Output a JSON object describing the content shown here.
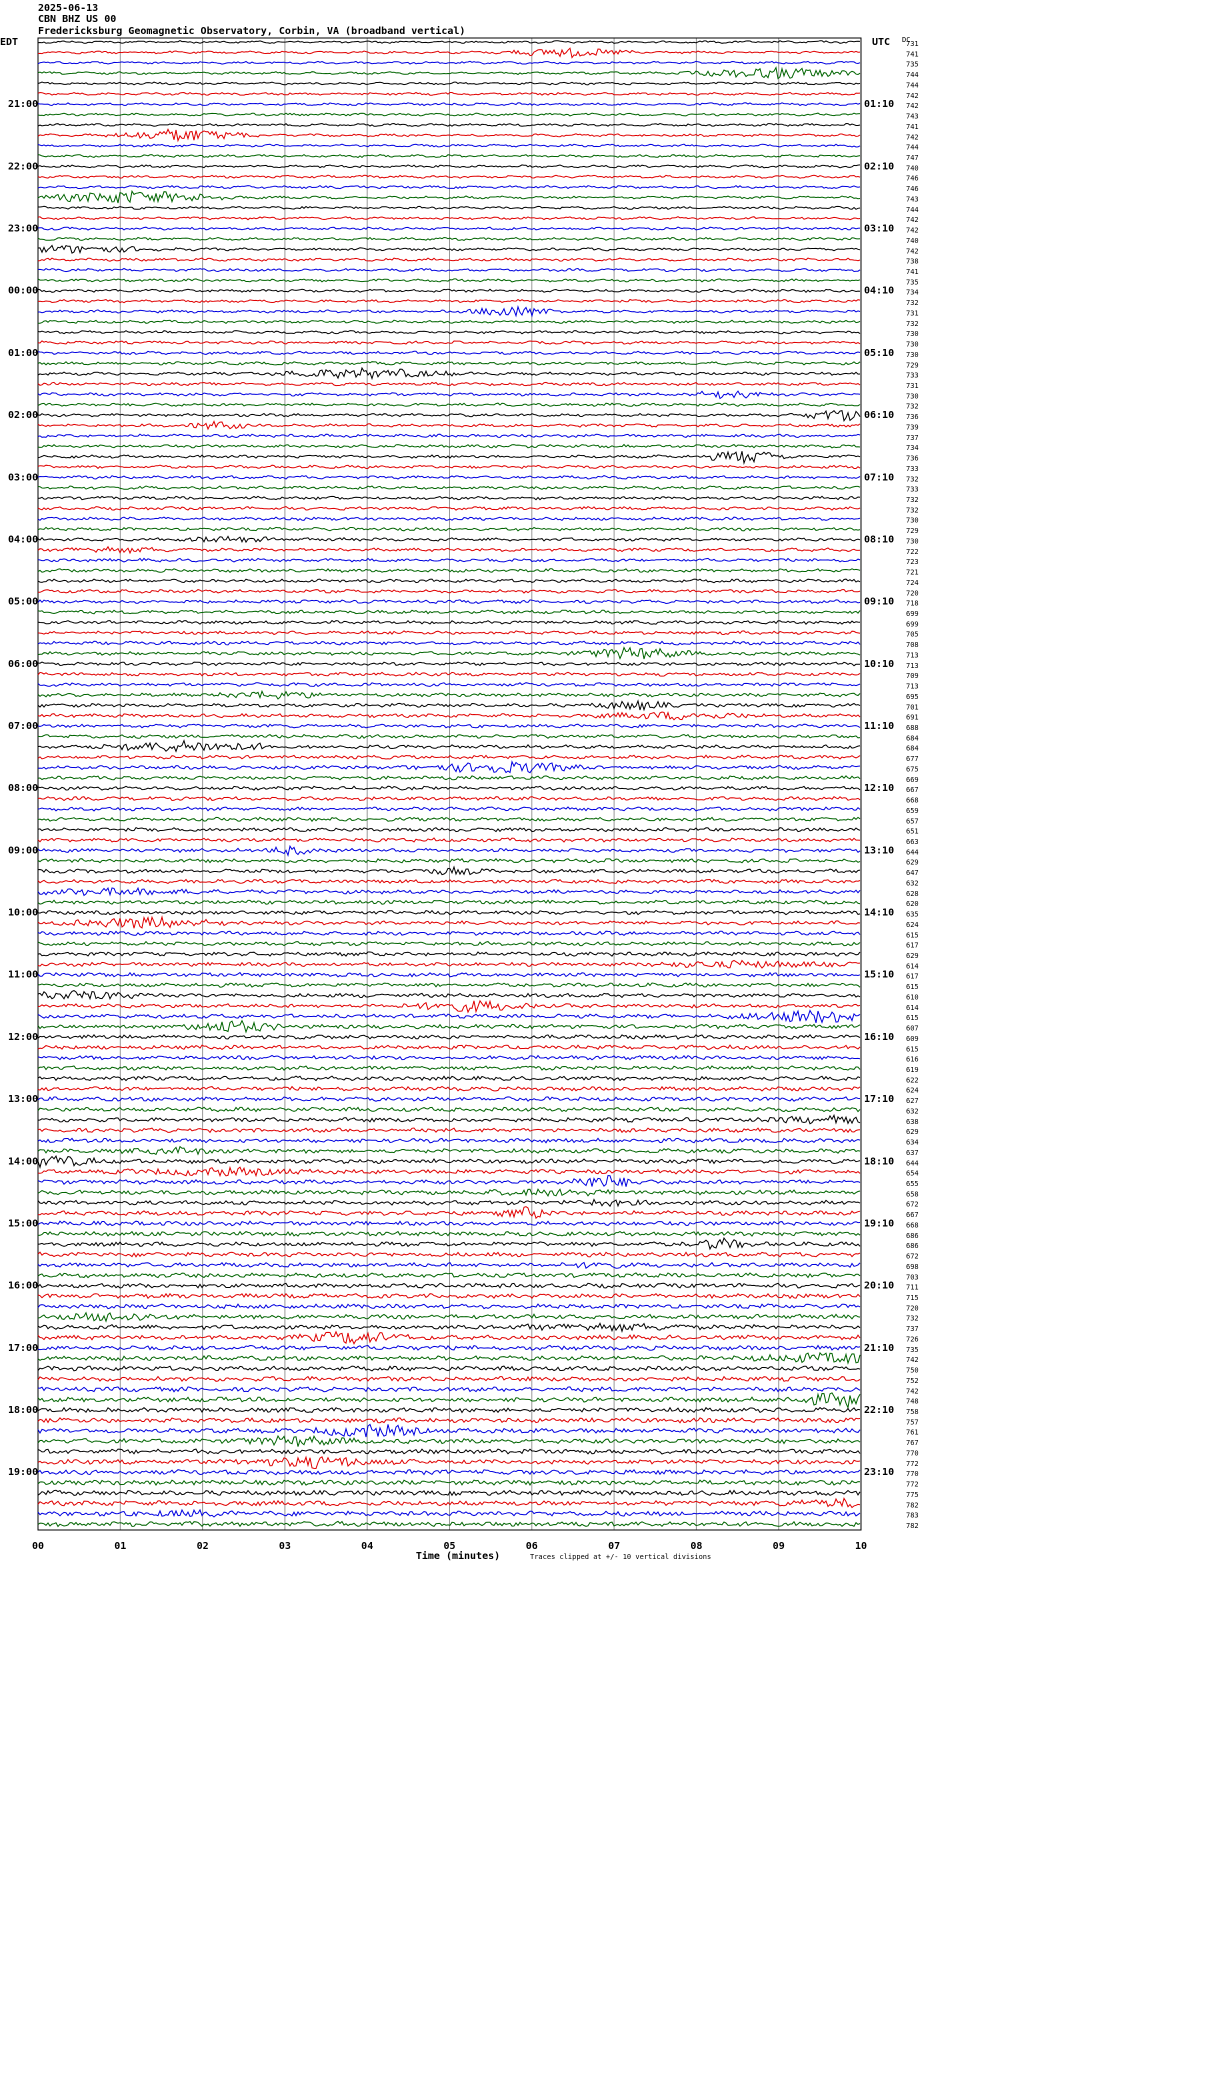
{
  "header": {
    "date": "2025-06-13",
    "station": "CBN BHZ US 00",
    "title": "Fredericksburg Geomagnetic Observatory, Corbin, VA (broadband vertical)"
  },
  "left_axis": {
    "label": "EDT",
    "times": [
      "21:00",
      "22:00",
      "23:00",
      "00:00",
      "01:00",
      "02:00",
      "03:00",
      "04:00",
      "05:00",
      "06:00",
      "07:00",
      "08:00",
      "09:00",
      "10:00",
      "11:00",
      "12:00",
      "13:00",
      "14:00",
      "15:00",
      "16:00",
      "17:00",
      "18:00",
      "19:00"
    ]
  },
  "right_axis": {
    "label": "UTC",
    "times": [
      "01:10",
      "02:10",
      "03:10",
      "04:10",
      "05:10",
      "06:10",
      "07:10",
      "08:10",
      "09:10",
      "10:10",
      "11:10",
      "12:10",
      "13:10",
      "14:10",
      "15:10",
      "16:10",
      "17:10",
      "18:10",
      "19:10",
      "20:10",
      "21:10",
      "22:10",
      "23:10"
    ]
  },
  "dc_label": "DC",
  "dc_values": [
    "731",
    "741",
    "735",
    "744",
    "744",
    "742",
    "742",
    "743",
    "741",
    "742",
    "744",
    "747",
    "740",
    "746",
    "746",
    "743",
    "744",
    "742",
    "742",
    "740",
    "742",
    "738",
    "741",
    "735",
    "734",
    "732",
    "731",
    "732",
    "730",
    "730",
    "730",
    "729",
    "733",
    "731",
    "730",
    "732",
    "736",
    "739",
    "737",
    "734",
    "736",
    "733",
    "732",
    "733",
    "732",
    "732",
    "730",
    "729",
    "730",
    "722",
    "723",
    "721",
    "724",
    "720",
    "718",
    "699",
    "699",
    "705",
    "708",
    "713",
    "713",
    "709",
    "713",
    "695",
    "701",
    "691",
    "688",
    "684",
    "684",
    "677",
    "675",
    "669",
    "667",
    "668",
    "659",
    "657",
    "651",
    "663",
    "644",
    "629",
    "647",
    "632",
    "628",
    "620",
    "635",
    "624",
    "615",
    "617",
    "629",
    "614",
    "617",
    "615",
    "610",
    "614",
    "615",
    "607",
    "609",
    "615",
    "616",
    "619",
    "622",
    "624",
    "627",
    "632",
    "638",
    "629",
    "634",
    "637",
    "644",
    "654",
    "655",
    "658",
    "672",
    "667",
    "668",
    "686",
    "686",
    "672",
    "698",
    "703",
    "711",
    "715",
    "720",
    "732",
    "737",
    "726",
    "735",
    "742",
    "750",
    "752",
    "742",
    "748",
    "758",
    "757",
    "761",
    "767",
    "770",
    "772",
    "770",
    "772",
    "775",
    "782",
    "783",
    "782"
  ],
  "trace_colors": [
    "#000000",
    "#e00000",
    "#0000e0",
    "#006400"
  ],
  "x_axis": {
    "ticks": [
      "00",
      "01",
      "02",
      "03",
      "04",
      "05",
      "06",
      "07",
      "08",
      "09",
      "10"
    ],
    "label": "Time (minutes)"
  },
  "note": "Traces clipped at +/- 10 vertical divisions"
}
